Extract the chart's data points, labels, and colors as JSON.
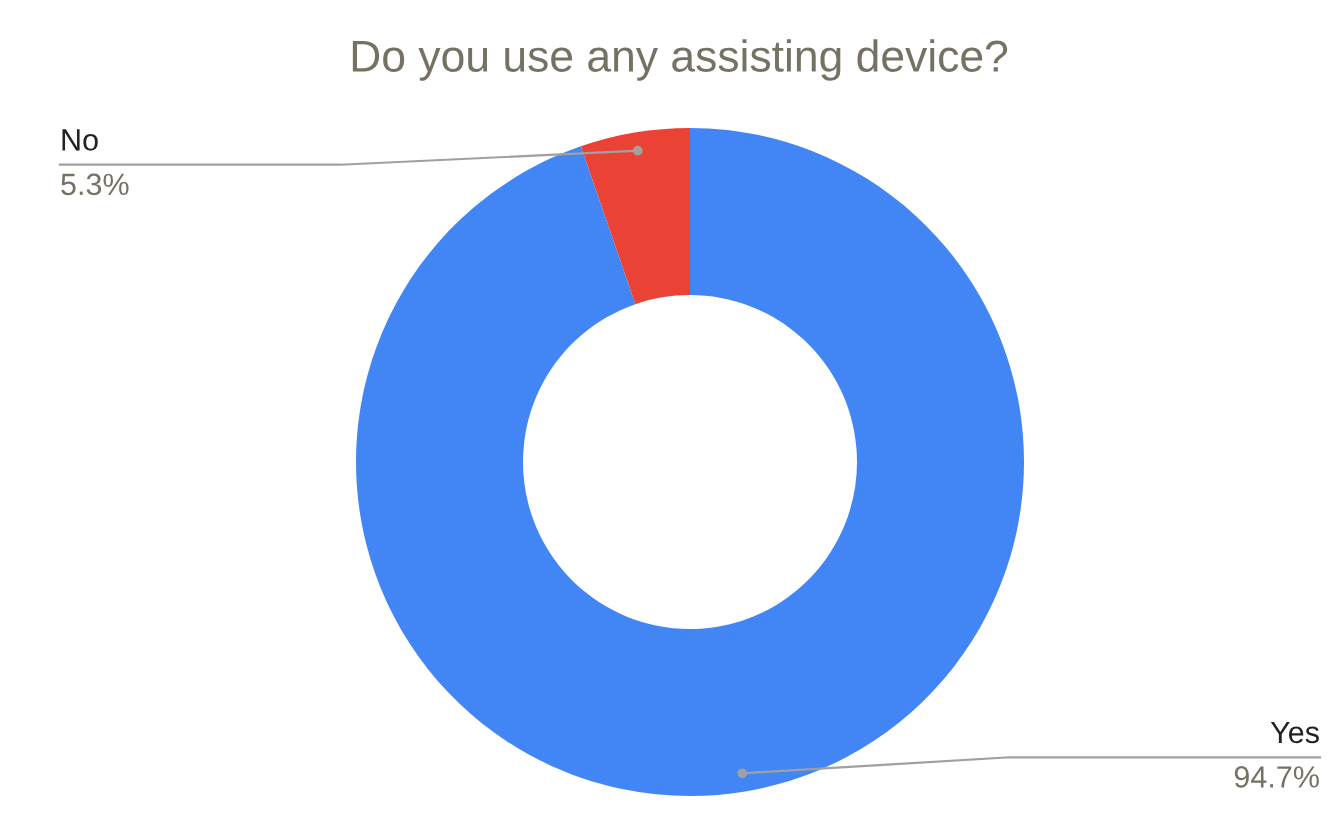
{
  "chart_data": {
    "type": "donut",
    "title": "Do you use any assisting device?",
    "categories": [
      "Yes",
      "No"
    ],
    "values": [
      94.7,
      5.3
    ],
    "colors": [
      "#4285f4",
      "#ea4335"
    ],
    "value_labels": [
      "94.7%",
      "5.3%"
    ]
  }
}
